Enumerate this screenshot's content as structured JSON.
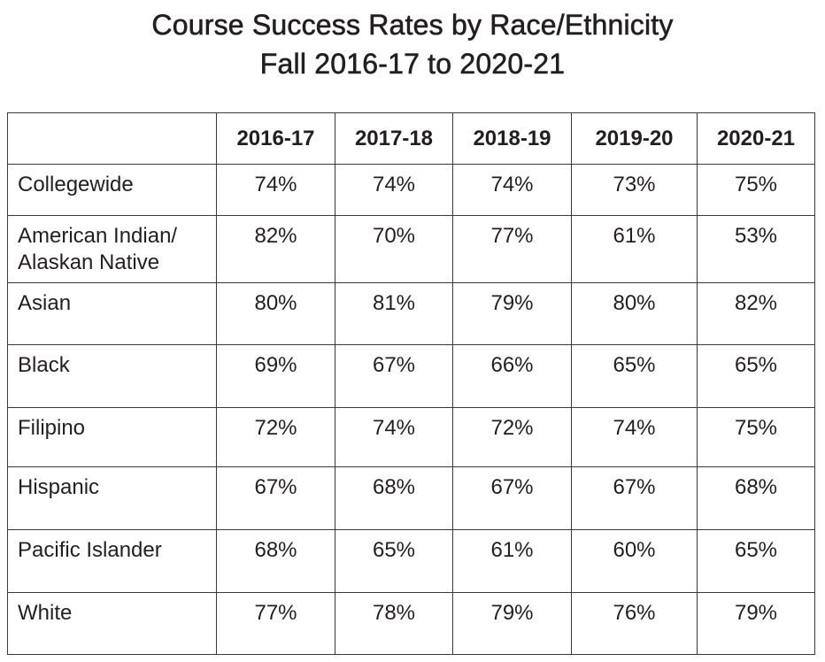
{
  "title": {
    "line1": "Course Success Rates by Race/Ethnicity",
    "line2": "Fall 2016-17 to 2020-21"
  },
  "chart_data": {
    "type": "table",
    "title": "Course Success Rates by Race/Ethnicity Fall 2016-17 to 2020-21",
    "columns": [
      "2016-17",
      "2017-18",
      "2018-19",
      "2019-20",
      "2020-21"
    ],
    "rows": [
      {
        "label": "Collegewide",
        "values": [
          "74%",
          "74%",
          "74%",
          "73%",
          "75%"
        ]
      },
      {
        "label": "American Indian/ Alaskan Native",
        "values": [
          "82%",
          "70%",
          "77%",
          "61%",
          "53%"
        ]
      },
      {
        "label": "Asian",
        "values": [
          "80%",
          "81%",
          "79%",
          "80%",
          "82%"
        ]
      },
      {
        "label": "Black",
        "values": [
          "69%",
          "67%",
          "66%",
          "65%",
          "65%"
        ]
      },
      {
        "label": "Filipino",
        "values": [
          "72%",
          "74%",
          "72%",
          "74%",
          "75%"
        ]
      },
      {
        "label": "Hispanic",
        "values": [
          "67%",
          "68%",
          "67%",
          "67%",
          "68%"
        ]
      },
      {
        "label": "Pacific Islander",
        "values": [
          "68%",
          "65%",
          "61%",
          "60%",
          "65%"
        ]
      },
      {
        "label": "White",
        "values": [
          "77%",
          "78%",
          "79%",
          "76%",
          "79%"
        ]
      }
    ]
  }
}
